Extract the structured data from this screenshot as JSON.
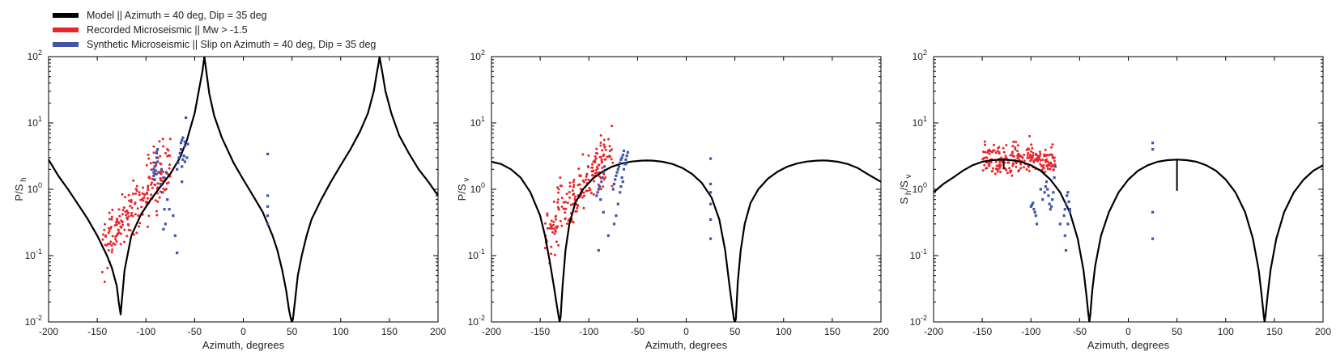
{
  "legend": [
    {
      "label": "Model || Azimuth = 40 deg, Dip = 35 deg",
      "color": "#000000"
    },
    {
      "label": "Recorded Microseismic || Mw > -1.5",
      "color": "#e8262c"
    },
    {
      "label": "Synthetic Microseismic || Slip on Azimuth = 40 deg, Dip = 35 deg",
      "color": "#4154a8"
    }
  ],
  "chart_data": [
    {
      "type": "line",
      "xlabel": "Azimuth, degrees",
      "ylabel": {
        "base": "P/S",
        "sub": "h",
        "sub2": ""
      },
      "xlim": [
        -200,
        200
      ],
      "ylim": [
        0.01,
        100
      ],
      "yscale": "log",
      "xticks": [
        "-200",
        "-150",
        "-100",
        "-50",
        "0",
        "50",
        "100",
        "150",
        "200"
      ],
      "yticks": [
        {
          "base": "10",
          "exp": "-2"
        },
        {
          "base": "10",
          "exp": "-1"
        },
        {
          "base": "10",
          "exp": "0"
        },
        {
          "base": "10",
          "exp": "1"
        },
        {
          "base": "10",
          "exp": "2"
        }
      ],
      "model_curve": {
        "x": [
          -200,
          -190,
          -180,
          -170,
          -160,
          -150,
          -140,
          -135,
          -130,
          -128,
          -126,
          -122,
          -115,
          -105,
          -95,
          -85,
          -75,
          -65,
          -58,
          -50,
          -45,
          -42,
          -40,
          -38,
          -35,
          -30,
          -22,
          -10,
          0,
          10,
          20,
          30,
          35,
          40,
          44,
          47,
          49,
          50,
          51,
          53,
          56,
          60,
          65,
          70,
          80,
          90,
          100,
          110,
          120,
          128,
          134,
          137,
          139,
          140,
          141,
          143,
          146,
          152,
          160,
          170,
          180,
          190,
          200
        ],
        "y": [
          2.8,
          1.6,
          1.0,
          0.6,
          0.36,
          0.2,
          0.1,
          0.065,
          0.035,
          0.02,
          0.013,
          0.06,
          0.2,
          0.42,
          0.7,
          1.1,
          1.7,
          3.0,
          5.5,
          14,
          35,
          60,
          100,
          60,
          28,
          13,
          6,
          2.5,
          1.4,
          0.8,
          0.45,
          0.2,
          0.12,
          0.06,
          0.03,
          0.015,
          0.011,
          0.01,
          0.011,
          0.02,
          0.05,
          0.1,
          0.2,
          0.35,
          0.7,
          1.3,
          2.3,
          4,
          7.5,
          14,
          30,
          55,
          80,
          100,
          80,
          55,
          30,
          14,
          6.5,
          3.5,
          2.0,
          1.3,
          0.8
        ]
      },
      "recorded": {
        "x_range": [
          -145,
          -75
        ],
        "y_center": 0.6,
        "count": 200
      },
      "synthetic_points": {
        "x": [
          -92,
          -92,
          -92,
          -91,
          -91,
          -91,
          -90,
          -90,
          -89,
          -89,
          -88,
          -88,
          -87,
          -85,
          -84,
          -83,
          -82,
          -81,
          -80,
          -79,
          -78,
          -76,
          -72,
          -70,
          -68,
          -67,
          -66,
          -65,
          -64,
          -64,
          -63,
          -63,
          -62,
          -62,
          -61,
          -60,
          -60,
          -59,
          -58,
          -57,
          -68,
          -63,
          -82,
          -60,
          25,
          25,
          25,
          25,
          25
        ],
        "y": [
          1.6,
          1.8,
          2.0,
          1.4,
          1.7,
          2.2,
          1.9,
          2.5,
          3.0,
          3.5,
          2.6,
          4.0,
          1.8,
          1.2,
          2.0,
          0.9,
          1.5,
          0.5,
          0.3,
          1.8,
          0.7,
          0.5,
          0.4,
          0.2,
          2.0,
          2.5,
          3.0,
          3.5,
          4.0,
          5.0,
          5.5,
          2.2,
          6.0,
          2.8,
          3.2,
          4.5,
          5.2,
          12.0,
          3.0,
          4.8,
          0.11,
          1.3,
          0.25,
          2.6,
          3.4,
          0.8,
          0.55,
          0.4,
          0.3
        ]
      },
      "spikes": []
    },
    {
      "type": "line",
      "xlabel": "Azimuth, degrees",
      "ylabel": {
        "base": "P/S",
        "sub": "v",
        "sub2": ""
      },
      "xlim": [
        -200,
        200
      ],
      "ylim": [
        0.01,
        100
      ],
      "yscale": "log",
      "xticks": [
        "-200",
        "-150",
        "-100",
        "-50",
        "0",
        "50",
        "100",
        "150",
        "200"
      ],
      "yticks": [
        {
          "base": "10",
          "exp": "-2"
        },
        {
          "base": "10",
          "exp": "-1"
        },
        {
          "base": "10",
          "exp": "0"
        },
        {
          "base": "10",
          "exp": "1"
        },
        {
          "base": "10",
          "exp": "2"
        }
      ],
      "model_curve": {
        "x": [
          -200,
          -190,
          -180,
          -170,
          -160,
          -150,
          -145,
          -140,
          -136,
          -133,
          -131,
          -130,
          -129,
          -127,
          -124,
          -120,
          -114,
          -106,
          -96,
          -86,
          -76,
          -66,
          -56,
          -46,
          -40,
          -34,
          -24,
          -14,
          -4,
          6,
          16,
          26,
          34,
          40,
          44,
          47,
          49,
          50,
          51,
          53,
          56,
          60,
          66,
          74,
          84,
          94,
          104,
          114,
          124,
          134,
          140,
          146,
          156,
          166,
          176,
          186,
          196,
          200
        ],
        "y": [
          2.6,
          2.4,
          2.0,
          1.5,
          0.9,
          0.4,
          0.2,
          0.08,
          0.035,
          0.018,
          0.012,
          0.01,
          0.012,
          0.035,
          0.12,
          0.3,
          0.62,
          1.0,
          1.45,
          1.85,
          2.2,
          2.45,
          2.62,
          2.7,
          2.72,
          2.7,
          2.6,
          2.4,
          2.1,
          1.7,
          1.25,
          0.75,
          0.35,
          0.12,
          0.04,
          0.018,
          0.011,
          0.01,
          0.011,
          0.04,
          0.12,
          0.3,
          0.62,
          1.0,
          1.45,
          1.85,
          2.2,
          2.45,
          2.62,
          2.7,
          2.72,
          2.7,
          2.6,
          2.4,
          2.1,
          1.7,
          1.4,
          1.3
        ]
      },
      "recorded": {
        "x_range": [
          -145,
          -75
        ],
        "y_center": 0.9,
        "count": 200
      },
      "synthetic_points": {
        "x": [
          -92,
          -91,
          -90,
          -89,
          -88,
          -87,
          -86,
          -85,
          -84,
          -75,
          -74,
          -73,
          -72,
          -71,
          -70,
          -69,
          -68,
          -67,
          -66,
          -65,
          -64,
          -63,
          -62,
          -61,
          -60,
          -65,
          -66,
          -67,
          -68,
          -70,
          -72,
          -74,
          -85,
          -90,
          -80,
          -64,
          -62,
          25,
          25,
          25,
          25,
          25,
          25
        ],
        "y": [
          0.8,
          0.9,
          1.0,
          1.1,
          0.7,
          1.3,
          1.5,
          1.8,
          2.2,
          1.0,
          1.2,
          1.4,
          1.6,
          1.8,
          2.0,
          2.2,
          2.5,
          2.8,
          3.0,
          3.3,
          2.0,
          2.4,
          2.8,
          3.2,
          3.6,
          1.3,
          1.5,
          1.1,
          0.9,
          0.6,
          0.4,
          0.3,
          0.45,
          0.12,
          0.2,
          3.8,
          2.4,
          2.9,
          1.2,
          0.9,
          0.6,
          0.35,
          0.18
        ]
      },
      "spikes": []
    },
    {
      "type": "line",
      "xlabel": "Azimuth, degrees",
      "ylabel": {
        "base": "S",
        "sub": "h",
        "sub2": "v"
      },
      "xlim": [
        -200,
        200
      ],
      "ylim": [
        0.01,
        100
      ],
      "yscale": "log",
      "xticks": [
        "-200",
        "-150",
        "-100",
        "-50",
        "0",
        "50",
        "100",
        "150",
        "200"
      ],
      "yticks": [
        {
          "base": "10",
          "exp": "-2"
        },
        {
          "base": "10",
          "exp": "-1"
        },
        {
          "base": "10",
          "exp": "0"
        },
        {
          "base": "10",
          "exp": "1"
        },
        {
          "base": "10",
          "exp": "2"
        }
      ],
      "model_curve": {
        "x": [
          -200,
          -190,
          -180,
          -170,
          -160,
          -150,
          -140,
          -130,
          -120,
          -110,
          -100,
          -90,
          -80,
          -70,
          -60,
          -52,
          -46,
          -43,
          -41,
          -40,
          -39,
          -37,
          -34,
          -28,
          -20,
          -10,
          0,
          10,
          20,
          30,
          40,
          50,
          60,
          70,
          80,
          90,
          100,
          110,
          120,
          128,
          134,
          137,
          139,
          140,
          141,
          143,
          146,
          152,
          160,
          170,
          180,
          190,
          200
        ],
        "y": [
          0.9,
          1.2,
          1.5,
          1.9,
          2.3,
          2.6,
          2.75,
          2.8,
          2.75,
          2.6,
          2.3,
          1.9,
          1.4,
          0.9,
          0.45,
          0.18,
          0.06,
          0.025,
          0.013,
          0.01,
          0.013,
          0.03,
          0.07,
          0.2,
          0.45,
          0.9,
          1.4,
          1.9,
          2.3,
          2.6,
          2.75,
          2.8,
          2.75,
          2.6,
          2.3,
          1.9,
          1.4,
          0.9,
          0.45,
          0.18,
          0.06,
          0.025,
          0.013,
          0.01,
          0.013,
          0.025,
          0.06,
          0.18,
          0.45,
          0.9,
          1.4,
          1.9,
          2.3
        ]
      },
      "recorded": {
        "x_range": [
          -150,
          -75
        ],
        "y_center": 2.8,
        "count": 220
      },
      "synthetic_points": {
        "x": [
          -100,
          -99,
          -98,
          -97,
          -96,
          -95,
          -94,
          -90,
          -88,
          -86,
          -85,
          -84,
          -83,
          -82,
          -81,
          -80,
          -79,
          -78,
          -77,
          -76,
          -75,
          -70,
          -66,
          -65,
          -64,
          -63,
          -62,
          -61,
          -60,
          -65,
          -64,
          -62,
          -60,
          25,
          25,
          25,
          25
        ],
        "y": [
          0.55,
          0.58,
          0.62,
          0.5,
          0.45,
          0.4,
          0.3,
          1.0,
          0.7,
          0.9,
          1.1,
          1.3,
          1.0,
          0.8,
          0.6,
          0.5,
          0.55,
          0.7,
          0.9,
          1.5,
          2.2,
          0.3,
          0.4,
          0.5,
          0.6,
          0.8,
          0.9,
          0.65,
          0.45,
          0.2,
          0.12,
          0.3,
          0.5,
          4.0,
          5.0,
          0.45,
          0.18
        ]
      },
      "spikes": [
        {
          "x": 50,
          "y_from": 2.8,
          "y_to": 0.95
        },
        {
          "x": -128,
          "y_from": 2.8,
          "y_to": 2.0
        }
      ]
    }
  ]
}
